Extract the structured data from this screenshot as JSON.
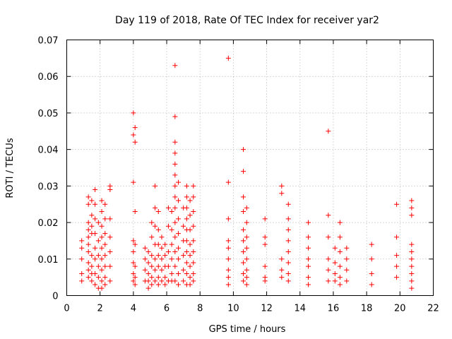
{
  "chart_data": {
    "type": "scatter",
    "title": "Day 119 of 2018, Rate Of TEC Index for receiver yar2",
    "xlabel": "GPS time / hours",
    "ylabel": "ROTI / TECUs",
    "xlim": [
      0,
      22
    ],
    "ylim": [
      0,
      0.07
    ],
    "xticks": [
      0,
      2,
      4,
      6,
      8,
      10,
      12,
      14,
      16,
      18,
      20,
      22
    ],
    "xtick_labels": [
      "0",
      "2",
      "4",
      "6",
      "8",
      "10",
      "12",
      "14",
      "16",
      "18",
      "20",
      "22"
    ],
    "yticks": [
      0,
      0.01,
      0.02,
      0.03,
      0.04,
      0.05,
      0.06,
      0.07
    ],
    "ytick_labels": [
      "0",
      "0.01",
      "0.02",
      "0.03",
      "0.04",
      "0.05",
      "0.06",
      "0.07"
    ],
    "grid": true,
    "marker": "+",
    "color": "#ff0000",
    "series": [
      {
        "name": "ROTI",
        "points": [
          [
            0.9,
            0.015
          ],
          [
            0.9,
            0.013
          ],
          [
            0.9,
            0.01
          ],
          [
            0.9,
            0.006
          ],
          [
            0.9,
            0.004
          ],
          [
            1.3,
            0.027
          ],
          [
            1.3,
            0.025
          ],
          [
            1.3,
            0.02
          ],
          [
            1.3,
            0.018
          ],
          [
            1.3,
            0.016
          ],
          [
            1.3,
            0.014
          ],
          [
            1.3,
            0.012
          ],
          [
            1.3,
            0.009
          ],
          [
            1.3,
            0.007
          ],
          [
            1.3,
            0.005
          ],
          [
            1.5,
            0.026
          ],
          [
            1.5,
            0.022
          ],
          [
            1.5,
            0.019
          ],
          [
            1.5,
            0.017
          ],
          [
            1.5,
            0.011
          ],
          [
            1.5,
            0.008
          ],
          [
            1.5,
            0.006
          ],
          [
            1.5,
            0.004
          ],
          [
            1.7,
            0.029
          ],
          [
            1.7,
            0.025
          ],
          [
            1.7,
            0.021
          ],
          [
            1.7,
            0.017
          ],
          [
            1.7,
            0.013
          ],
          [
            1.7,
            0.01
          ],
          [
            1.7,
            0.006
          ],
          [
            1.7,
            0.003
          ],
          [
            1.9,
            0.02
          ],
          [
            1.9,
            0.015
          ],
          [
            1.9,
            0.011
          ],
          [
            1.9,
            0.008
          ],
          [
            1.9,
            0.005
          ],
          [
            1.9,
            0.002
          ],
          [
            2.1,
            0.026
          ],
          [
            2.1,
            0.023
          ],
          [
            2.1,
            0.019
          ],
          [
            2.1,
            0.016
          ],
          [
            2.1,
            0.013
          ],
          [
            2.1,
            0.01
          ],
          [
            2.1,
            0.007
          ],
          [
            2.1,
            0.004
          ],
          [
            2.1,
            0.002
          ],
          [
            2.3,
            0.025
          ],
          [
            2.3,
            0.021
          ],
          [
            2.3,
            0.017
          ],
          [
            2.3,
            0.014
          ],
          [
            2.3,
            0.011
          ],
          [
            2.3,
            0.008
          ],
          [
            2.3,
            0.005
          ],
          [
            2.3,
            0.003
          ],
          [
            2.6,
            0.03
          ],
          [
            2.6,
            0.029
          ],
          [
            2.6,
            0.021
          ],
          [
            2.6,
            0.016
          ],
          [
            2.6,
            0.012
          ],
          [
            2.6,
            0.008
          ],
          [
            2.6,
            0.004
          ],
          [
            4.0,
            0.05
          ],
          [
            4.0,
            0.044
          ],
          [
            4.0,
            0.031
          ],
          [
            4.0,
            0.015
          ],
          [
            4.0,
            0.012
          ],
          [
            4.0,
            0.009
          ],
          [
            4.0,
            0.006
          ],
          [
            4.0,
            0.004
          ],
          [
            4.1,
            0.046
          ],
          [
            4.1,
            0.042
          ],
          [
            4.1,
            0.023
          ],
          [
            4.1,
            0.014
          ],
          [
            4.1,
            0.008
          ],
          [
            4.1,
            0.005
          ],
          [
            4.1,
            0.003
          ],
          [
            4.7,
            0.013
          ],
          [
            4.7,
            0.01
          ],
          [
            4.7,
            0.007
          ],
          [
            4.7,
            0.004
          ],
          [
            4.9,
            0.012
          ],
          [
            4.9,
            0.009
          ],
          [
            4.9,
            0.006
          ],
          [
            4.9,
            0.004
          ],
          [
            4.9,
            0.002
          ],
          [
            5.1,
            0.02
          ],
          [
            5.1,
            0.016
          ],
          [
            5.1,
            0.011
          ],
          [
            5.1,
            0.008
          ],
          [
            5.1,
            0.005
          ],
          [
            5.1,
            0.003
          ],
          [
            5.3,
            0.03
          ],
          [
            5.3,
            0.024
          ],
          [
            5.3,
            0.019
          ],
          [
            5.3,
            0.014
          ],
          [
            5.3,
            0.01
          ],
          [
            5.3,
            0.007
          ],
          [
            5.3,
            0.004
          ],
          [
            5.5,
            0.023
          ],
          [
            5.5,
            0.018
          ],
          [
            5.5,
            0.014
          ],
          [
            5.5,
            0.011
          ],
          [
            5.5,
            0.008
          ],
          [
            5.5,
            0.005
          ],
          [
            5.5,
            0.003
          ],
          [
            5.7,
            0.016
          ],
          [
            5.7,
            0.013
          ],
          [
            5.7,
            0.01
          ],
          [
            5.7,
            0.007
          ],
          [
            5.7,
            0.004
          ],
          [
            5.9,
            0.014
          ],
          [
            5.9,
            0.011
          ],
          [
            5.9,
            0.008
          ],
          [
            5.9,
            0.005
          ],
          [
            5.9,
            0.003
          ],
          [
            6.1,
            0.024
          ],
          [
            6.1,
            0.019
          ],
          [
            6.1,
            0.012
          ],
          [
            6.1,
            0.008
          ],
          [
            6.1,
            0.004
          ],
          [
            6.3,
            0.023
          ],
          [
            6.3,
            0.018
          ],
          [
            6.3,
            0.014
          ],
          [
            6.3,
            0.01
          ],
          [
            6.3,
            0.006
          ],
          [
            6.3,
            0.004
          ],
          [
            6.5,
            0.063
          ],
          [
            6.5,
            0.049
          ],
          [
            6.5,
            0.042
          ],
          [
            6.5,
            0.039
          ],
          [
            6.5,
            0.036
          ],
          [
            6.5,
            0.033
          ],
          [
            6.5,
            0.03
          ],
          [
            6.5,
            0.027
          ],
          [
            6.5,
            0.024
          ],
          [
            6.5,
            0.02
          ],
          [
            6.5,
            0.016
          ],
          [
            6.5,
            0.012
          ],
          [
            6.5,
            0.008
          ],
          [
            6.5,
            0.004
          ],
          [
            6.7,
            0.031
          ],
          [
            6.7,
            0.026
          ],
          [
            6.7,
            0.021
          ],
          [
            6.7,
            0.017
          ],
          [
            6.7,
            0.013
          ],
          [
            6.7,
            0.01
          ],
          [
            6.7,
            0.006
          ],
          [
            6.7,
            0.003
          ],
          [
            7.0,
            0.024
          ],
          [
            7.0,
            0.019
          ],
          [
            7.0,
            0.015
          ],
          [
            7.0,
            0.011
          ],
          [
            7.0,
            0.007
          ],
          [
            7.0,
            0.004
          ],
          [
            7.2,
            0.03
          ],
          [
            7.2,
            0.027
          ],
          [
            7.2,
            0.024
          ],
          [
            7.2,
            0.021
          ],
          [
            7.2,
            0.018
          ],
          [
            7.2,
            0.015
          ],
          [
            7.2,
            0.012
          ],
          [
            7.2,
            0.009
          ],
          [
            7.2,
            0.006
          ],
          [
            7.2,
            0.003
          ],
          [
            7.4,
            0.026
          ],
          [
            7.4,
            0.022
          ],
          [
            7.4,
            0.018
          ],
          [
            7.4,
            0.014
          ],
          [
            7.4,
            0.011
          ],
          [
            7.4,
            0.008
          ],
          [
            7.4,
            0.005
          ],
          [
            7.4,
            0.003
          ],
          [
            7.6,
            0.03
          ],
          [
            7.6,
            0.027
          ],
          [
            7.6,
            0.023
          ],
          [
            7.6,
            0.019
          ],
          [
            7.6,
            0.015
          ],
          [
            7.6,
            0.012
          ],
          [
            7.6,
            0.009
          ],
          [
            7.6,
            0.006
          ],
          [
            7.6,
            0.004
          ],
          [
            9.7,
            0.065
          ],
          [
            9.7,
            0.031
          ],
          [
            9.7,
            0.021
          ],
          [
            9.7,
            0.015
          ],
          [
            9.7,
            0.013
          ],
          [
            9.7,
            0.01
          ],
          [
            9.7,
            0.007
          ],
          [
            9.7,
            0.005
          ],
          [
            9.7,
            0.003
          ],
          [
            10.6,
            0.04
          ],
          [
            10.6,
            0.034
          ],
          [
            10.6,
            0.027
          ],
          [
            10.6,
            0.023
          ],
          [
            10.6,
            0.018
          ],
          [
            10.6,
            0.015
          ],
          [
            10.6,
            0.012
          ],
          [
            10.6,
            0.009
          ],
          [
            10.6,
            0.006
          ],
          [
            10.6,
            0.004
          ],
          [
            10.8,
            0.024
          ],
          [
            10.8,
            0.02
          ],
          [
            10.8,
            0.016
          ],
          [
            10.8,
            0.013
          ],
          [
            10.8,
            0.01
          ],
          [
            10.8,
            0.007
          ],
          [
            10.8,
            0.005
          ],
          [
            10.8,
            0.003
          ],
          [
            11.9,
            0.021
          ],
          [
            11.9,
            0.016
          ],
          [
            11.9,
            0.014
          ],
          [
            11.9,
            0.008
          ],
          [
            11.9,
            0.005
          ],
          [
            11.9,
            0.004
          ],
          [
            12.9,
            0.03
          ],
          [
            12.9,
            0.028
          ],
          [
            12.9,
            0.01
          ],
          [
            12.9,
            0.007
          ],
          [
            12.9,
            0.005
          ],
          [
            13.3,
            0.025
          ],
          [
            13.3,
            0.021
          ],
          [
            13.3,
            0.018
          ],
          [
            13.3,
            0.015
          ],
          [
            13.3,
            0.012
          ],
          [
            13.3,
            0.009
          ],
          [
            13.3,
            0.006
          ],
          [
            13.3,
            0.004
          ],
          [
            14.5,
            0.02
          ],
          [
            14.5,
            0.016
          ],
          [
            14.5,
            0.013
          ],
          [
            14.5,
            0.01
          ],
          [
            14.5,
            0.008
          ],
          [
            14.5,
            0.005
          ],
          [
            14.5,
            0.003
          ],
          [
            15.7,
            0.045
          ],
          [
            15.7,
            0.022
          ],
          [
            15.7,
            0.016
          ],
          [
            15.7,
            0.01
          ],
          [
            15.7,
            0.007
          ],
          [
            15.7,
            0.004
          ],
          [
            16.1,
            0.013
          ],
          [
            16.1,
            0.009
          ],
          [
            16.1,
            0.006
          ],
          [
            16.1,
            0.004
          ],
          [
            16.4,
            0.02
          ],
          [
            16.4,
            0.016
          ],
          [
            16.4,
            0.012
          ],
          [
            16.4,
            0.008
          ],
          [
            16.4,
            0.005
          ],
          [
            16.4,
            0.003
          ],
          [
            16.8,
            0.013
          ],
          [
            16.8,
            0.01
          ],
          [
            16.8,
            0.007
          ],
          [
            16.8,
            0.004
          ],
          [
            18.3,
            0.014
          ],
          [
            18.3,
            0.01
          ],
          [
            18.3,
            0.006
          ],
          [
            18.3,
            0.003
          ],
          [
            19.8,
            0.025
          ],
          [
            19.8,
            0.016
          ],
          [
            19.8,
            0.011
          ],
          [
            19.8,
            0.008
          ],
          [
            19.8,
            0.005
          ],
          [
            20.7,
            0.026
          ],
          [
            20.7,
            0.024
          ],
          [
            20.7,
            0.022
          ],
          [
            20.7,
            0.014
          ],
          [
            20.7,
            0.012
          ],
          [
            20.7,
            0.01
          ],
          [
            20.7,
            0.008
          ],
          [
            20.7,
            0.006
          ],
          [
            20.7,
            0.004
          ],
          [
            20.7,
            0.002
          ]
        ]
      }
    ]
  }
}
